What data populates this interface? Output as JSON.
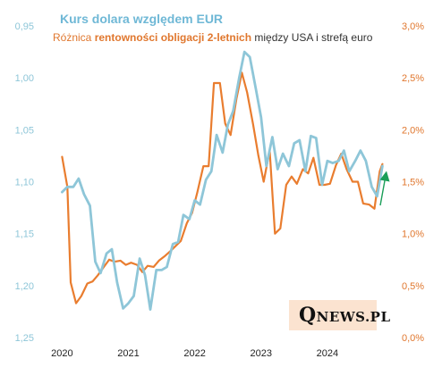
{
  "chart_data": {
    "type": "line",
    "title": "Kurs dolara względem EUR",
    "subtitle_parts": [
      {
        "text": "Różnica ",
        "bold": false,
        "role": "orange"
      },
      {
        "text": "rentowności obligacji 2-letnich",
        "bold": true,
        "role": "orange"
      },
      {
        "text": " między USA i strefą euro",
        "bold": false,
        "role": "dark"
      }
    ],
    "x_ticks": [
      "2020",
      "2021",
      "2022",
      "2023",
      "2024"
    ],
    "x_range": [
      2019.9,
      2025.0
    ],
    "left_axis": {
      "reversed": true,
      "range": [
        0.95,
        1.25
      ],
      "ticks": [
        "0,95",
        "1,00",
        "1,05",
        "1,10",
        "1,15",
        "1,20",
        "1,25"
      ],
      "color": "#8ec6d8"
    },
    "right_axis": {
      "range": [
        0.0,
        3.0
      ],
      "ticks": [
        "0,0%",
        "0,5%",
        "1,0%",
        "1,5%",
        "2,0%",
        "2,5%",
        "3,0%"
      ],
      "color": "#e0772e"
    },
    "series": [
      {
        "axis": "left",
        "color": "#8ec6d8",
        "points": [
          [
            2020.0,
            1.11
          ],
          [
            2020.08,
            1.105
          ],
          [
            2020.17,
            1.105
          ],
          [
            2020.25,
            1.097
          ],
          [
            2020.33,
            1.112
          ],
          [
            2020.42,
            1.123
          ],
          [
            2020.5,
            1.177
          ],
          [
            2020.58,
            1.188
          ],
          [
            2020.67,
            1.169
          ],
          [
            2020.75,
            1.165
          ],
          [
            2020.83,
            1.197
          ],
          [
            2020.92,
            1.222
          ],
          [
            2021.0,
            1.217
          ],
          [
            2021.08,
            1.21
          ],
          [
            2021.17,
            1.174
          ],
          [
            2021.25,
            1.19
          ],
          [
            2021.33,
            1.223
          ],
          [
            2021.42,
            1.185
          ],
          [
            2021.5,
            1.185
          ],
          [
            2021.58,
            1.182
          ],
          [
            2021.67,
            1.16
          ],
          [
            2021.75,
            1.158
          ],
          [
            2021.83,
            1.132
          ],
          [
            2021.92,
            1.136
          ],
          [
            2022.0,
            1.118
          ],
          [
            2022.08,
            1.122
          ],
          [
            2022.17,
            1.098
          ],
          [
            2022.25,
            1.09
          ],
          [
            2022.33,
            1.055
          ],
          [
            2022.42,
            1.072
          ],
          [
            2022.5,
            1.045
          ],
          [
            2022.58,
            1.032
          ],
          [
            2022.67,
            1.0
          ],
          [
            2022.75,
            0.975
          ],
          [
            2022.83,
            0.98
          ],
          [
            2022.92,
            1.01
          ],
          [
            2023.0,
            1.038
          ],
          [
            2023.08,
            1.085
          ],
          [
            2023.17,
            1.057
          ],
          [
            2023.25,
            1.088
          ],
          [
            2023.33,
            1.073
          ],
          [
            2023.42,
            1.085
          ],
          [
            2023.5,
            1.063
          ],
          [
            2023.58,
            1.06
          ],
          [
            2023.67,
            1.09
          ],
          [
            2023.75,
            1.056
          ],
          [
            2023.83,
            1.058
          ],
          [
            2023.92,
            1.103
          ],
          [
            2024.0,
            1.08
          ],
          [
            2024.08,
            1.082
          ],
          [
            2024.17,
            1.08
          ],
          [
            2024.25,
            1.07
          ],
          [
            2024.33,
            1.09
          ],
          [
            2024.42,
            1.08
          ],
          [
            2024.5,
            1.07
          ],
          [
            2024.58,
            1.08
          ],
          [
            2024.67,
            1.105
          ],
          [
            2024.75,
            1.114
          ],
          [
            2024.83,
            1.085
          ]
        ]
      },
      {
        "axis": "right",
        "color": "#e97d2f",
        "points": [
          [
            2020.0,
            1.74
          ],
          [
            2020.08,
            1.45
          ],
          [
            2020.13,
            0.53
          ],
          [
            2020.21,
            0.33
          ],
          [
            2020.29,
            0.4
          ],
          [
            2020.38,
            0.52
          ],
          [
            2020.46,
            0.54
          ],
          [
            2020.54,
            0.6
          ],
          [
            2020.63,
            0.68
          ],
          [
            2020.71,
            0.75
          ],
          [
            2020.79,
            0.73
          ],
          [
            2020.88,
            0.74
          ],
          [
            2020.96,
            0.7
          ],
          [
            2021.04,
            0.72
          ],
          [
            2021.13,
            0.7
          ],
          [
            2021.21,
            0.63
          ],
          [
            2021.29,
            0.69
          ],
          [
            2021.38,
            0.68
          ],
          [
            2021.46,
            0.74
          ],
          [
            2021.54,
            0.78
          ],
          [
            2021.63,
            0.83
          ],
          [
            2021.71,
            0.88
          ],
          [
            2021.79,
            0.93
          ],
          [
            2021.88,
            1.1
          ],
          [
            2021.96,
            1.2
          ],
          [
            2022.04,
            1.4
          ],
          [
            2022.13,
            1.65
          ],
          [
            2022.21,
            1.65
          ],
          [
            2022.29,
            2.45
          ],
          [
            2022.38,
            2.45
          ],
          [
            2022.46,
            2.06
          ],
          [
            2022.54,
            1.95
          ],
          [
            2022.63,
            2.3
          ],
          [
            2022.71,
            2.55
          ],
          [
            2022.79,
            2.36
          ],
          [
            2022.88,
            2.05
          ],
          [
            2022.96,
            1.75
          ],
          [
            2023.04,
            1.5
          ],
          [
            2023.13,
            1.8
          ],
          [
            2023.21,
            1.0
          ],
          [
            2023.29,
            1.05
          ],
          [
            2023.38,
            1.47
          ],
          [
            2023.46,
            1.55
          ],
          [
            2023.54,
            1.48
          ],
          [
            2023.63,
            1.62
          ],
          [
            2023.71,
            1.58
          ],
          [
            2023.79,
            1.73
          ],
          [
            2023.88,
            1.47
          ],
          [
            2023.96,
            1.47
          ],
          [
            2024.04,
            1.48
          ],
          [
            2024.13,
            1.66
          ],
          [
            2024.21,
            1.77
          ],
          [
            2024.29,
            1.62
          ],
          [
            2024.38,
            1.5
          ],
          [
            2024.46,
            1.5
          ],
          [
            2024.54,
            1.29
          ],
          [
            2024.63,
            1.28
          ],
          [
            2024.71,
            1.24
          ],
          [
            2024.79,
            1.6
          ],
          [
            2024.83,
            1.67
          ]
        ]
      }
    ],
    "annotation": {
      "type": "arrow",
      "color": "#1a9e58",
      "direction": "up"
    }
  },
  "logo": {
    "first": "Q",
    "rest": "NEWS.PL"
  }
}
